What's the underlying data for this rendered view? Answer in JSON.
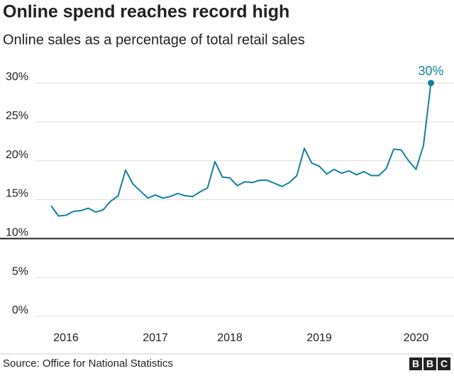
{
  "chart_data": {
    "type": "line",
    "title": "Online spend reaches record high",
    "subtitle": "Online sales as a percentage of total retail sales",
    "source": "Source: Office for National Statistics",
    "logo": [
      "B",
      "B",
      "C"
    ],
    "categories": [
      null,
      null,
      "2016",
      null,
      null,
      null,
      null,
      null,
      null,
      null,
      null,
      null,
      null,
      null,
      "2017",
      null,
      null,
      null,
      null,
      null,
      null,
      null,
      null,
      null,
      "2018",
      null,
      null,
      null,
      null,
      null,
      null,
      null,
      null,
      null,
      null,
      null,
      "2019",
      null,
      null,
      null,
      null,
      null,
      null,
      null,
      null,
      null,
      null,
      null,
      null,
      "2020",
      null,
      null
    ],
    "series": [
      {
        "color": "#1380a1",
        "values": [
          14.2,
          12.9,
          13.0,
          13.5,
          13.6,
          13.9,
          13.4,
          13.7,
          14.8,
          15.5,
          18.8,
          17.0,
          16.1,
          15.2,
          15.6,
          15.2,
          15.4,
          15.8,
          15.5,
          15.4,
          16.0,
          16.5,
          19.9,
          17.9,
          17.8,
          16.8,
          17.3,
          17.2,
          17.5,
          17.5,
          17.1,
          16.7,
          17.2,
          18.1,
          21.6,
          19.7,
          19.3,
          18.3,
          18.9,
          18.4,
          18.7,
          18.2,
          18.6,
          18.1,
          18.1,
          19.0,
          21.5,
          21.4,
          20.0,
          18.9,
          22.0,
          30.0
        ],
        "value_labels": [
          null,
          null,
          null,
          null,
          null,
          null,
          null,
          null,
          null,
          null,
          null,
          null,
          null,
          null,
          null,
          null,
          null,
          null,
          null,
          null,
          null,
          null,
          null,
          null,
          null,
          null,
          null,
          null,
          null,
          null,
          null,
          null,
          null,
          null,
          null,
          null,
          null,
          null,
          null,
          null,
          null,
          null,
          null,
          null,
          null,
          null,
          null,
          null,
          null,
          null,
          null,
          "30%"
        ]
      }
    ],
    "ylim": [
      0,
      30
    ],
    "yticks": [
      {
        "value": 0,
        "label": "0%"
      },
      {
        "value": 5,
        "label": "5%"
      },
      {
        "value": 10,
        "label": "10%"
      },
      {
        "value": 15,
        "label": "15%"
      },
      {
        "value": 20,
        "label": "20%"
      },
      {
        "value": 25,
        "label": "25%"
      },
      {
        "value": 30,
        "label": "30%"
      }
    ],
    "reference_line": 10,
    "grid": true
  }
}
